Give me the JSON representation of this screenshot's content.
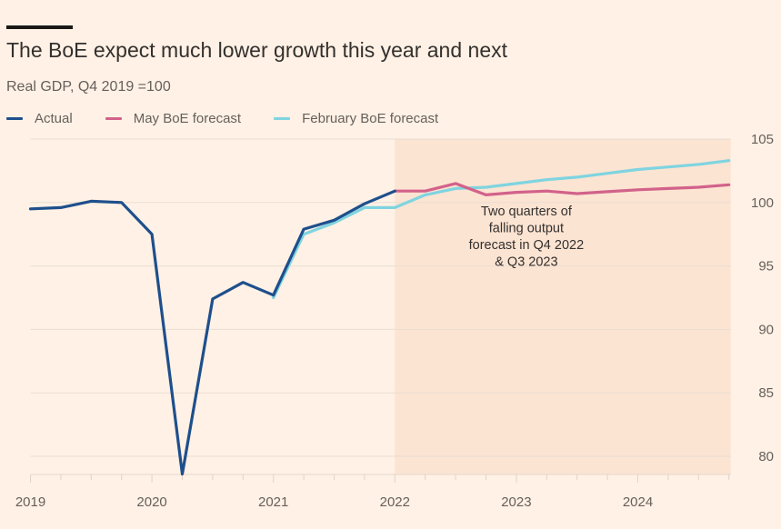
{
  "header": {
    "title": "The BoE expect much lower growth this year and next",
    "subtitle": "Real GDP, Q4 2019 =100"
  },
  "legend": [
    {
      "label": "Actual",
      "color": "#1e4f8c"
    },
    {
      "label": "May BoE forecast",
      "color": "#d2628a"
    },
    {
      "label": "February BoE forecast",
      "color": "#7fd4e0"
    }
  ],
  "chart_data": {
    "type": "line",
    "title": "The BoE expect much lower growth this year and next",
    "subtitle": "Real GDP, Q4 2019 =100",
    "xlabel": "",
    "ylabel": "",
    "ylim": [
      80,
      105
    ],
    "yticks": [
      80,
      85,
      90,
      95,
      100,
      105
    ],
    "yaxis_position": "right",
    "xticks": [
      "2019",
      "2020",
      "2021",
      "2022",
      "2023",
      "2024"
    ],
    "x_unit": "quarter index from 2019 Q1",
    "grid": true,
    "legend_position": "top-left",
    "shaded_region": {
      "from": "2022 Q1",
      "to": "2024 Q4",
      "color": "#fce4d2"
    },
    "series": [
      {
        "name": "Actual",
        "color": "#1e4f8c",
        "x": [
          "2019 Q1",
          "2019 Q2",
          "2019 Q3",
          "2019 Q4",
          "2020 Q1",
          "2020 Q2",
          "2020 Q3",
          "2020 Q4",
          "2021 Q1",
          "2021 Q2",
          "2021 Q3",
          "2021 Q4",
          "2022 Q1"
        ],
        "values": [
          99.5,
          99.6,
          100.1,
          100.0,
          97.5,
          78.6,
          92.4,
          93.7,
          92.7,
          97.9,
          98.6,
          99.9,
          100.9
        ]
      },
      {
        "name": "May BoE forecast",
        "color": "#d2628a",
        "x": [
          "2022 Q1",
          "2022 Q2",
          "2022 Q3",
          "2022 Q4",
          "2023 Q1",
          "2023 Q2",
          "2023 Q3",
          "2023 Q4",
          "2024 Q1",
          "2024 Q2",
          "2024 Q3",
          "2024 Q4"
        ],
        "values": [
          100.9,
          100.9,
          101.5,
          100.6,
          100.8,
          100.9,
          100.7,
          100.85,
          101.0,
          101.1,
          101.2,
          101.4
        ]
      },
      {
        "name": "February BoE forecast",
        "color": "#7fd4e0",
        "x": [
          "2021 Q1",
          "2021 Q2",
          "2021 Q3",
          "2021 Q4",
          "2022 Q1",
          "2022 Q2",
          "2022 Q3",
          "2022 Q4",
          "2023 Q1",
          "2023 Q2",
          "2023 Q3",
          "2023 Q4",
          "2024 Q1",
          "2024 Q2",
          "2024 Q3",
          "2024 Q4"
        ],
        "values": [
          92.5,
          97.5,
          98.4,
          99.6,
          99.6,
          100.6,
          101.1,
          101.2,
          101.5,
          101.8,
          102.0,
          102.3,
          102.6,
          102.8,
          103.0,
          103.3
        ]
      }
    ],
    "annotations": [
      {
        "text": [
          "Two quarters of",
          "falling output",
          "forecast in Q4 2022",
          "& Q3 2023"
        ],
        "anchor": "2023 Q1",
        "value": 99.0
      }
    ]
  }
}
